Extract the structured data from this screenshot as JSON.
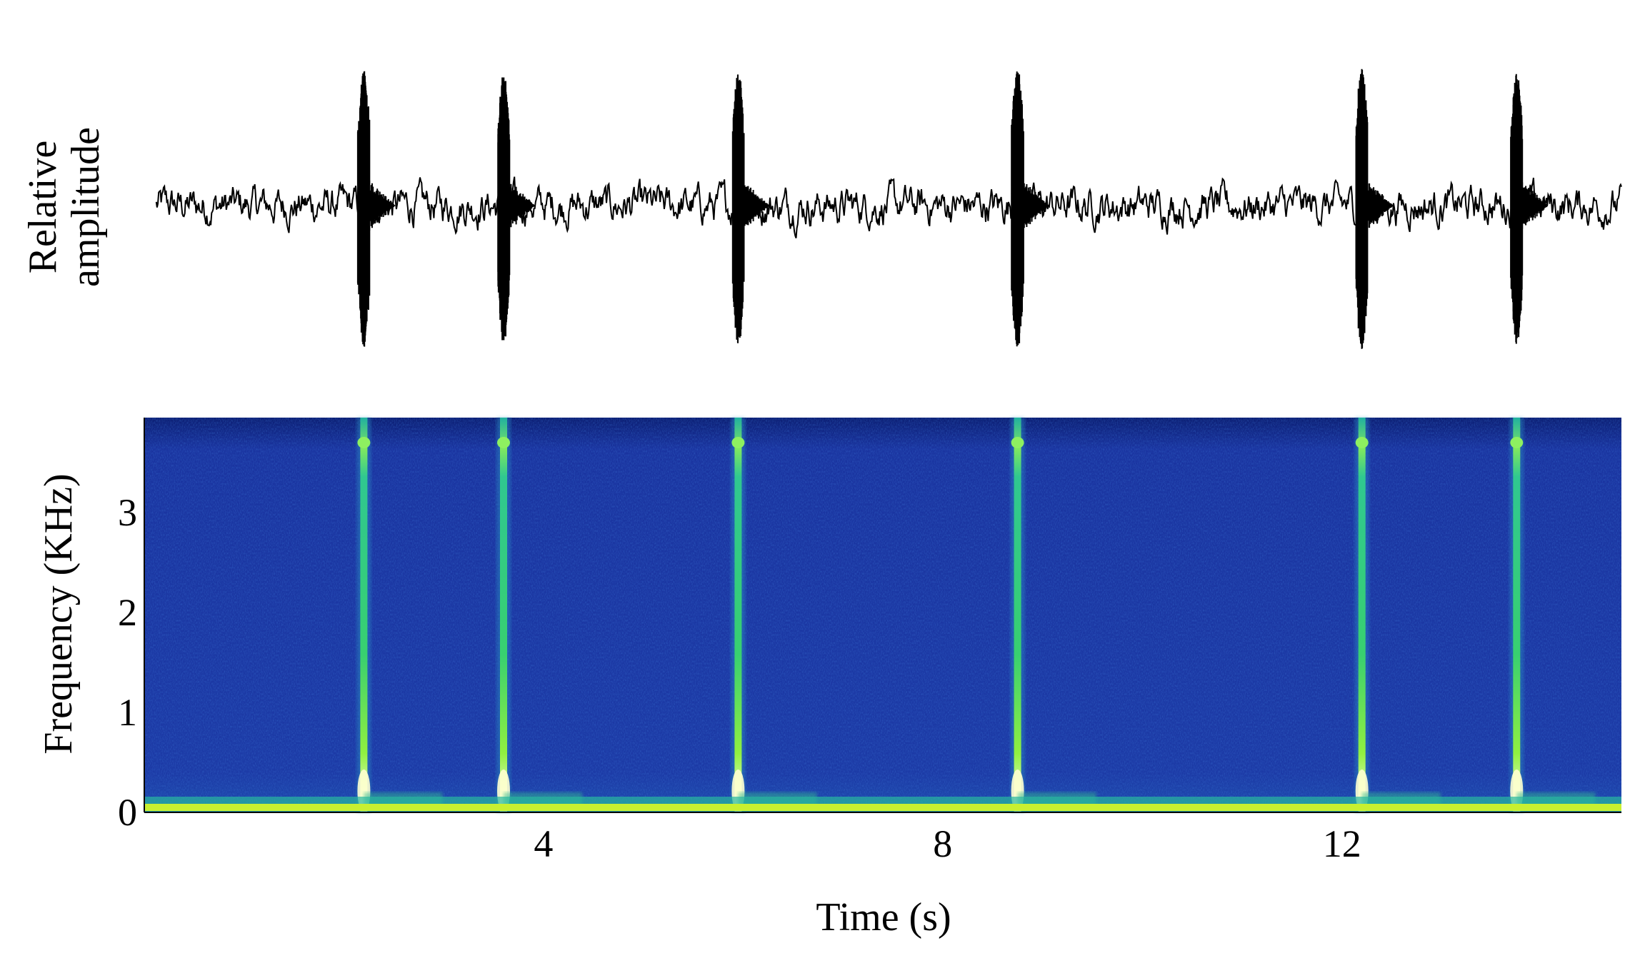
{
  "figure": {
    "waveform_ylabel_line1": "Relative",
    "waveform_ylabel_line2": "amplitude",
    "spectrogram_ylabel": "Frequency (KHz)",
    "xlabel": "Time (s)"
  },
  "chart_data": [
    {
      "type": "line",
      "panel": "waveform",
      "ylabel": "Relative amplitude",
      "xlim": [
        0,
        14.8
      ],
      "ylim": [
        -1,
        1
      ],
      "grid": false,
      "bursts": [
        {
          "t": 2.2,
          "amplitude": 0.95
        },
        {
          "t": 3.6,
          "amplitude": 0.92
        },
        {
          "t": 5.95,
          "amplitude": 0.94
        },
        {
          "t": 8.75,
          "amplitude": 0.95
        },
        {
          "t": 12.2,
          "amplitude": 0.96
        },
        {
          "t": 13.75,
          "amplitude": 0.93
        }
      ],
      "baseline_noise_level": 0.12,
      "color": "#000000"
    },
    {
      "type": "heatmap",
      "panel": "spectrogram",
      "xlabel": "Time (s)",
      "ylabel": "Frequency (KHz)",
      "xlim": [
        0,
        14.8
      ],
      "ylim": [
        0,
        3.95
      ],
      "x_ticks": [
        4,
        8,
        12
      ],
      "y_ticks": [
        0,
        1,
        2,
        3
      ],
      "grid": false,
      "events_s": [
        2.2,
        3.6,
        5.95,
        8.75,
        12.2,
        13.75
      ],
      "low_freq_band_khz": 0.05,
      "colormap": [
        "#0a1e6e",
        "#1a3ca0",
        "#1e78c8",
        "#20c8a0",
        "#40e040",
        "#c8f020",
        "#ffff90"
      ],
      "background_color": "#1a36a0"
    }
  ]
}
